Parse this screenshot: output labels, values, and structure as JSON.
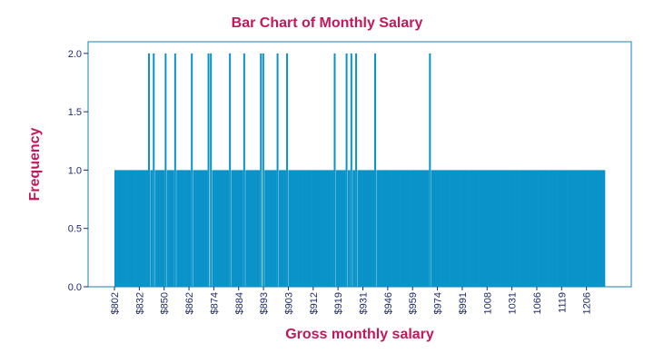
{
  "colors": {
    "bar": "#0a93c8",
    "title": "#c2185b",
    "axis": "#1f2a6b",
    "frame": "#1a7fb0"
  },
  "chart_data": {
    "type": "bar",
    "title": "Bar Chart of Monthly Salary",
    "xlabel": "Gross monthly salary",
    "ylabel": "Frequency",
    "ylim": [
      0,
      2.1
    ],
    "yticks": [
      0.0,
      0.5,
      1.0,
      1.5,
      2.0
    ],
    "ytick_labels": [
      "0.0",
      "0.5",
      "1.0",
      "1.5",
      "2.0"
    ],
    "categories_count": 206,
    "xtick_labels": [
      "$802",
      "$832",
      "$850",
      "$862",
      "$874",
      "$884",
      "$893",
      "$903",
      "$912",
      "$919",
      "$931",
      "$946",
      "$959",
      "$974",
      "$991",
      "1008",
      "1031",
      "1066",
      "1119",
      "1206"
    ],
    "values_baseline": 1,
    "series": [
      {
        "values_by_index": {
          "14": 2,
          "16": 2,
          "21": 2,
          "25": 2,
          "32": 2,
          "39": 2,
          "40": 2,
          "48": 2,
          "54": 2,
          "61": 2,
          "62": 2,
          "68": 2,
          "72": 2,
          "92": 2,
          "97": 2,
          "99": 2,
          "101": 2,
          "109": 2,
          "132": 2
        }
      }
    ],
    "grid": false,
    "legend": "none"
  }
}
